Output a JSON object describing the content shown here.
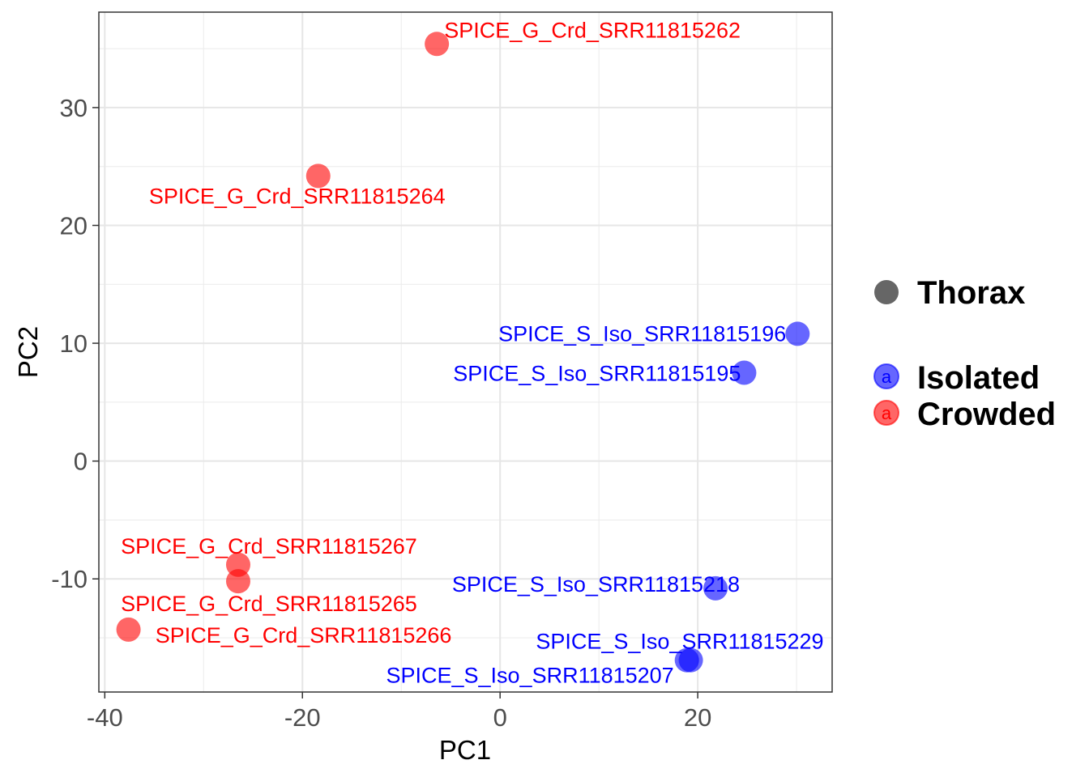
{
  "chart_data": {
    "type": "scatter",
    "title": "",
    "xlabel": "PC1",
    "ylabel": "PC2",
    "xlim": [
      -40.6,
      33.6
    ],
    "ylim": [
      -19.6,
      38.1
    ],
    "x_ticks": [
      -40,
      -20,
      0,
      20
    ],
    "x_tick_labels": [
      "-40",
      "-20",
      "0",
      "20"
    ],
    "y_ticks": [
      -10,
      0,
      10,
      20,
      30
    ],
    "y_tick_labels": [
      "-10",
      "0",
      "10",
      "20",
      "30"
    ],
    "grid": true,
    "legend_position": "right",
    "legend": {
      "shape_title": "Thorax",
      "groups": [
        {
          "name": "Isolated",
          "color": "#0000ff",
          "glyph": "a"
        },
        {
          "name": "Crowded",
          "color": "#ff0000",
          "glyph": "a"
        }
      ],
      "shape_color": "#666666"
    },
    "series": [
      {
        "name": "Isolated",
        "color": "#0000ff",
        "points": [
          {
            "label": "SPICE_S_Iso_SRR11815196",
            "x": 30.1,
            "y": 10.8
          },
          {
            "label": "SPICE_S_Iso_SRR11815195",
            "x": 24.7,
            "y": 7.5
          },
          {
            "label": "SPICE_S_Iso_SRR11815218",
            "x": 21.8,
            "y": -10.8
          },
          {
            "label": "SPICE_S_Iso_SRR11815229",
            "x": 19.3,
            "y": -16.9
          },
          {
            "label": "SPICE_S_Iso_SRR11815207",
            "x": 18.9,
            "y": -16.9
          }
        ]
      },
      {
        "name": "Crowded",
        "color": "#ff0000",
        "points": [
          {
            "label": "SPICE_G_Crd_SRR11815262",
            "x": -6.4,
            "y": 35.4
          },
          {
            "label": "SPICE_G_Crd_SRR11815264",
            "x": -18.4,
            "y": 24.2
          },
          {
            "label": "SPICE_G_Crd_SRR11815267",
            "x": -26.5,
            "y": -8.8
          },
          {
            "label": "SPICE_G_Crd_SRR11815265",
            "x": -26.5,
            "y": -10.2
          },
          {
            "label": "SPICE_G_Crd_SRR11815266",
            "x": -37.6,
            "y": -14.3
          }
        ]
      }
    ]
  }
}
